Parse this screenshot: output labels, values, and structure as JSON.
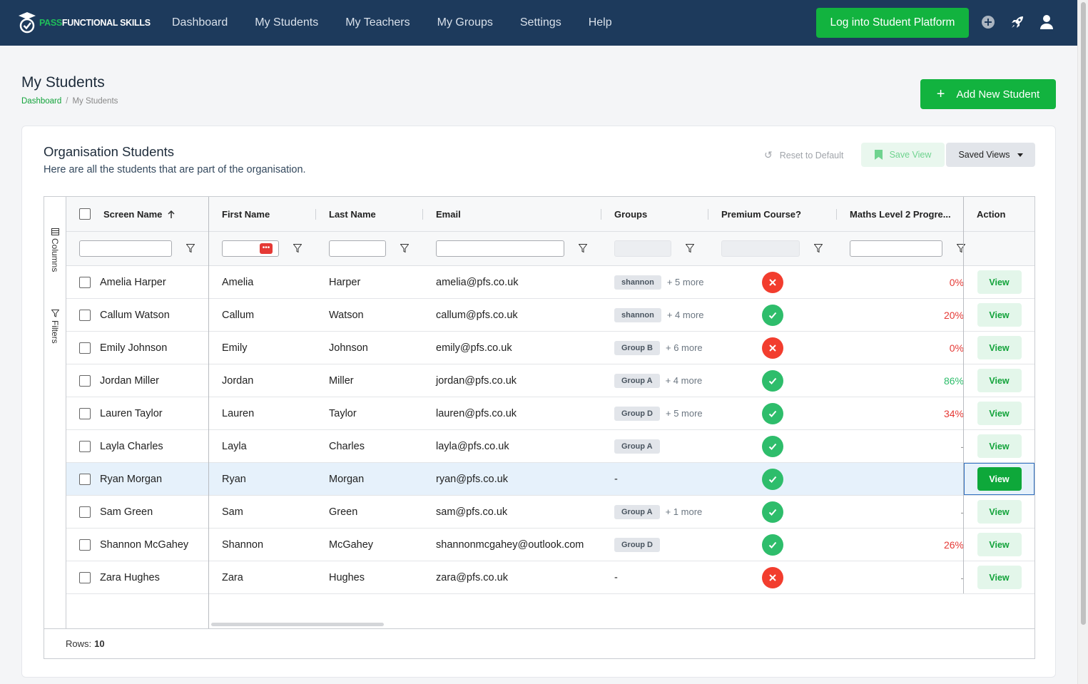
{
  "brand": {
    "logo_pass": "PASS",
    "logo_rest": "FUNCTIONAL SKILLS"
  },
  "nav": {
    "links": [
      "Dashboard",
      "My Students",
      "My Teachers",
      "My Groups",
      "Settings",
      "Help"
    ],
    "login_label": "Log into Student Platform",
    "icons": [
      "plus-circle-icon",
      "rocket-icon",
      "user-icon"
    ]
  },
  "page": {
    "title": "My Students",
    "breadcrumb": [
      "Dashboard",
      "My Students"
    ],
    "add_label": "Add New Student"
  },
  "card": {
    "title": "Organisation Students",
    "subtitle": "Here are all the students that are part of the organisation.",
    "reset_label": "Reset to Default",
    "save_view_label": "Save View",
    "saved_views_label": "Saved Views"
  },
  "grid": {
    "side_panels": [
      "Columns",
      "Filters"
    ],
    "columns": [
      "Screen Name",
      "First Name",
      "Last Name",
      "Email",
      "Groups",
      "Premium Course?",
      "Maths Level 2 Progre...",
      "Action"
    ],
    "rows": [
      {
        "screen": "Amelia Harper",
        "first": "Amelia",
        "last": "Harper",
        "email": "amelia@pfs.co.uk",
        "group": "shannon",
        "more": "+ 5 more",
        "premium": false,
        "progress": "0%",
        "progress_color": "#e53935",
        "action": "View"
      },
      {
        "screen": "Callum Watson",
        "first": "Callum",
        "last": "Watson",
        "email": "callum@pfs.co.uk",
        "group": "shannon",
        "more": "+ 4 more",
        "premium": true,
        "progress": "20%",
        "progress_color": "#e53935",
        "action": "View"
      },
      {
        "screen": "Emily Johnson",
        "first": "Emily",
        "last": "Johnson",
        "email": "emily@pfs.co.uk",
        "group": "Group B",
        "more": "+ 6 more",
        "premium": false,
        "progress": "0%",
        "progress_color": "#e53935",
        "action": "View"
      },
      {
        "screen": "Jordan Miller",
        "first": "Jordan",
        "last": "Miller",
        "email": "jordan@pfs.co.uk",
        "group": "Group A",
        "more": "+ 4 more",
        "premium": true,
        "progress": "86%",
        "progress_color": "#2ebd6b",
        "action": "View"
      },
      {
        "screen": "Lauren Taylor",
        "first": "Lauren",
        "last": "Taylor",
        "email": "lauren@pfs.co.uk",
        "group": "Group D",
        "more": "+ 5 more",
        "premium": true,
        "progress": "34%",
        "progress_color": "#e53935",
        "action": "View"
      },
      {
        "screen": "Layla Charles",
        "first": "Layla",
        "last": "Charles",
        "email": "layla@pfs.co.uk",
        "group": "Group A",
        "more": "",
        "premium": true,
        "progress": "-",
        "progress_color": "#999999",
        "action": "View"
      },
      {
        "screen": "Ryan Morgan",
        "first": "Ryan",
        "last": "Morgan",
        "email": "ryan@pfs.co.uk",
        "group": "",
        "group_empty": "-",
        "more": "",
        "premium": true,
        "progress": "",
        "progress_color": "#999999",
        "action": "View",
        "selected": true
      },
      {
        "screen": "Sam Green",
        "first": "Sam",
        "last": "Green",
        "email": "sam@pfs.co.uk",
        "group": "Group A",
        "more": "+ 1 more",
        "premium": true,
        "progress": "-",
        "progress_color": "#999999",
        "action": "View"
      },
      {
        "screen": "Shannon McGahey",
        "first": "Shannon",
        "last": "McGahey",
        "email": "shannonmcgahey@outlook.com",
        "group": "Group D",
        "more": "",
        "premium": true,
        "progress": "26%",
        "progress_color": "#e53935",
        "action": "View"
      },
      {
        "screen": "Zara Hughes",
        "first": "Zara",
        "last": "Hughes",
        "email": "zara@pfs.co.uk",
        "group": "",
        "group_empty": "-",
        "more": "",
        "premium": false,
        "progress": "-",
        "progress_color": "#999999",
        "action": "View"
      }
    ],
    "rows_label": "Rows:",
    "rows_count": "10"
  },
  "colors": {
    "nav_bg": "#1d3a5c",
    "accent_green": "#12b33f",
    "danger_red": "#f23d2e",
    "success_green": "#2ebd6b"
  }
}
